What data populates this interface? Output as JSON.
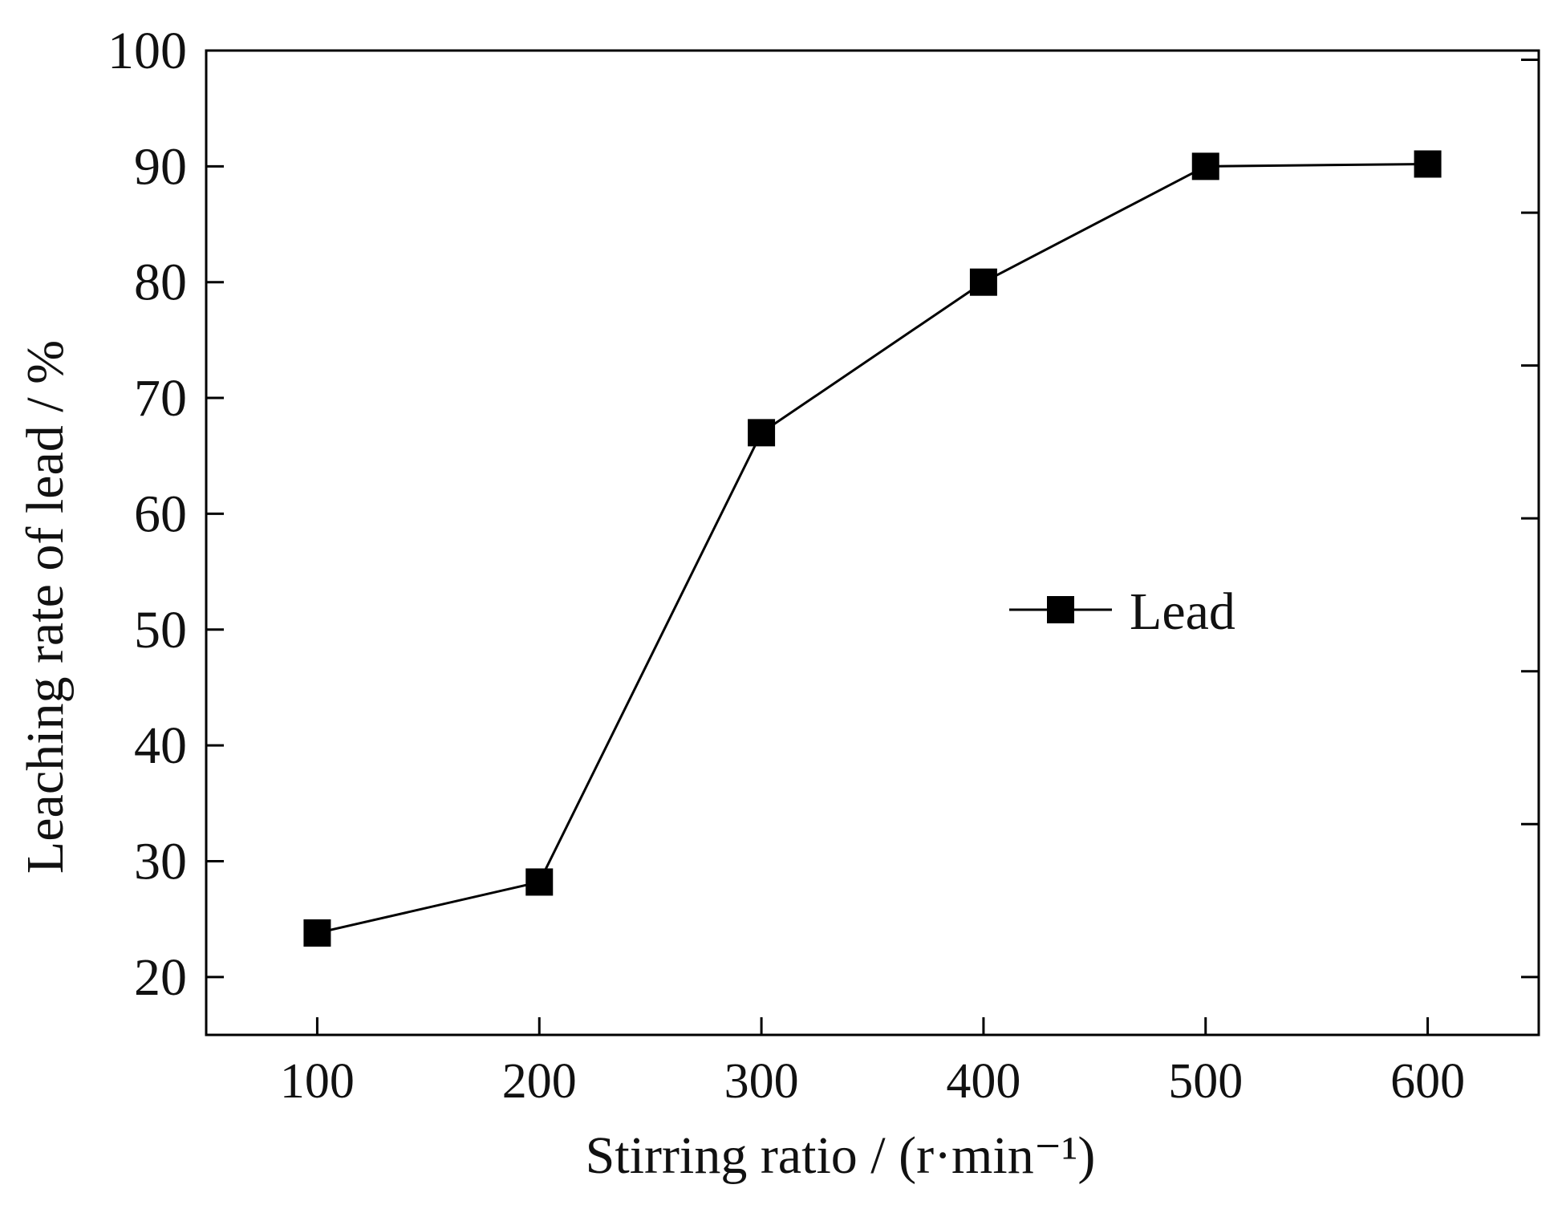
{
  "chart_data": {
    "type": "line",
    "title": "",
    "xlabel": "Stirring ratio / (r·min⁻¹)",
    "ylabel": "Leaching rate of lead / %",
    "xlim": [
      50,
      650
    ],
    "ylim": [
      15,
      100
    ],
    "x_ticks": [
      100,
      200,
      300,
      400,
      500,
      600
    ],
    "y_ticks": [
      20,
      30,
      40,
      50,
      60,
      70,
      80,
      90,
      100
    ],
    "y_right_ticks": [
      20,
      33.2,
      46.4,
      59.6,
      72.8,
      86,
      99.2
    ],
    "grid": false,
    "legend_position": "center-right",
    "series": [
      {
        "name": "Lead",
        "marker": "square",
        "color": "#000000",
        "x": [
          100,
          200,
          300,
          400,
          500,
          600
        ],
        "values": [
          23.8,
          28.2,
          67.0,
          80.0,
          90.0,
          90.2
        ]
      }
    ]
  }
}
